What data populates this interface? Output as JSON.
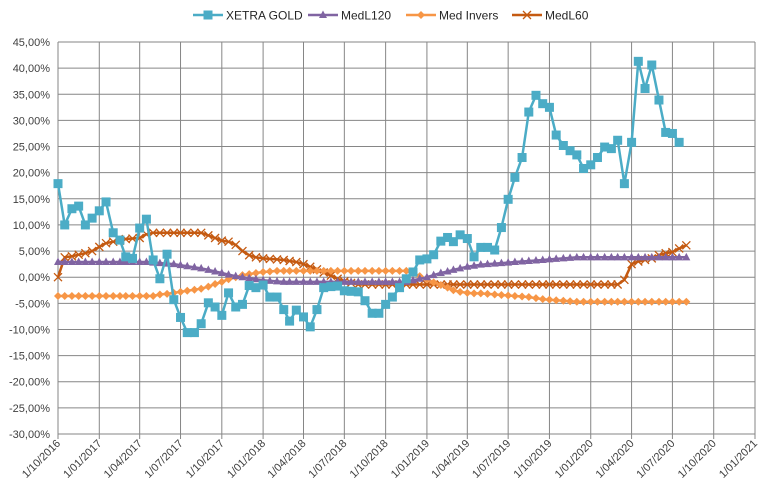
{
  "chart_data": {
    "type": "line",
    "title": "",
    "xlabel": "",
    "ylabel": "",
    "grid": true,
    "legend_placement": "top",
    "xlim": [
      "2016-10-01",
      "2021-01-01"
    ],
    "ylim": [
      -30,
      45
    ],
    "y_tick_step": 5,
    "x_ticks": [
      "1/10/2016",
      "1/01/2017",
      "1/04/2017",
      "1/07/2017",
      "1/10/2017",
      "1/01/2018",
      "1/04/2018",
      "1/07/2018",
      "1/10/2018",
      "1/01/2019",
      "1/04/2019",
      "1/07/2019",
      "1/10/2019",
      "1/01/2020",
      "1/04/2020",
      "1/07/2020",
      "1/10/2020",
      "1/01/2021"
    ],
    "y_ticks": [
      "45,00%",
      "40,00%",
      "35,00%",
      "30,00%",
      "25,00%",
      "20,00%",
      "15,00%",
      "10,00%",
      "5,00%",
      "0,00%",
      "-5,00%",
      "-10,00%",
      "-15,00%",
      "-20,00%",
      "-25,00%",
      "-30,00%"
    ],
    "x": [
      "2016-10-01",
      "2016-10-16",
      "2016-11-01",
      "2016-11-16",
      "2016-12-01",
      "2016-12-16",
      "2017-01-01",
      "2017-01-16",
      "2017-02-01",
      "2017-02-16",
      "2017-03-01",
      "2017-03-16",
      "2017-04-01",
      "2017-04-16",
      "2017-05-01",
      "2017-05-16",
      "2017-06-01",
      "2017-06-16",
      "2017-07-01",
      "2017-07-16",
      "2017-08-01",
      "2017-08-16",
      "2017-09-01",
      "2017-09-16",
      "2017-10-01",
      "2017-10-16",
      "2017-11-01",
      "2017-11-16",
      "2017-12-01",
      "2017-12-16",
      "2018-01-01",
      "2018-01-16",
      "2018-02-01",
      "2018-02-16",
      "2018-03-01",
      "2018-03-16",
      "2018-04-01",
      "2018-04-16",
      "2018-05-01",
      "2018-05-16",
      "2018-06-01",
      "2018-06-16",
      "2018-07-01",
      "2018-07-16",
      "2018-08-01",
      "2018-08-16",
      "2018-09-01",
      "2018-09-16",
      "2018-10-01",
      "2018-10-16",
      "2018-11-01",
      "2018-11-16",
      "2018-12-01",
      "2018-12-16",
      "2019-01-01",
      "2019-01-16",
      "2019-02-01",
      "2019-02-16",
      "2019-03-01",
      "2019-03-16",
      "2019-04-01",
      "2019-04-16",
      "2019-05-01",
      "2019-05-16",
      "2019-06-01",
      "2019-06-16",
      "2019-07-01",
      "2019-07-16",
      "2019-08-01",
      "2019-08-16",
      "2019-09-01",
      "2019-09-16",
      "2019-10-01",
      "2019-10-16",
      "2019-11-01",
      "2019-11-16",
      "2019-12-01",
      "2019-12-16",
      "2020-01-01",
      "2020-01-16",
      "2020-02-01",
      "2020-02-16",
      "2020-03-01",
      "2020-03-16",
      "2020-04-01",
      "2020-04-16",
      "2020-05-01",
      "2020-05-16",
      "2020-06-01",
      "2020-06-16",
      "2020-07-01",
      "2020-07-16",
      "2020-08-01"
    ],
    "series": [
      {
        "name": "XETRA GOLD",
        "color": "#4bacc6",
        "marker": "square",
        "values": [
          17.9,
          10.0,
          13.1,
          13.6,
          10.0,
          11.3,
          12.7,
          14.4,
          8.5,
          7.1,
          3.9,
          3.6,
          9.4,
          11.1,
          3.3,
          -0.3,
          4.4,
          -4.3,
          -7.7,
          -10.6,
          -10.6,
          -8.9,
          -4.9,
          -5.7,
          -7.3,
          -3.0,
          -5.7,
          -5.2,
          -1.6,
          -2.0,
          -1.5,
          -3.8,
          -3.8,
          -6.2,
          -8.4,
          -6.3,
          -7.6,
          -9.5,
          -6.2,
          -2.0,
          -1.8,
          -1.7,
          -2.6,
          -2.7,
          -2.8,
          -4.5,
          -6.9,
          -6.9,
          -5.2,
          -3.8,
          -2.0,
          -0.3,
          1.0,
          3.3,
          3.5,
          4.3,
          6.9,
          7.6,
          6.8,
          8.1,
          7.4,
          3.9,
          5.7,
          5.7,
          5.2,
          9.5,
          14.9,
          19.1,
          22.9,
          31.6,
          34.8,
          33.2,
          32.5,
          27.2,
          25.2,
          24.2,
          23.4,
          20.8,
          21.5,
          22.9,
          24.9,
          24.6,
          26.2,
          17.9,
          25.8,
          41.3,
          36.1,
          40.6,
          33.9,
          27.7,
          27.5,
          25.8,
          null
        ]
      },
      {
        "name": "MedL120",
        "color": "#8064a2",
        "marker": "triangle",
        "values": [
          2.9,
          2.9,
          2.9,
          2.9,
          2.9,
          2.9,
          2.9,
          2.9,
          2.9,
          2.9,
          2.9,
          2.9,
          2.9,
          2.9,
          2.8,
          2.7,
          2.6,
          2.5,
          2.3,
          2.1,
          1.9,
          1.7,
          1.4,
          1.1,
          0.8,
          0.5,
          0.2,
          0.0,
          -0.2,
          -0.4,
          -0.6,
          -0.7,
          -0.8,
          -0.9,
          -0.9,
          -0.9,
          -0.9,
          -0.9,
          -0.9,
          -0.9,
          -0.9,
          -0.9,
          -0.9,
          -0.9,
          -0.9,
          -0.9,
          -0.9,
          -0.9,
          -0.9,
          -0.9,
          -0.9,
          -0.9,
          -0.6,
          -0.3,
          0.0,
          0.4,
          0.8,
          1.1,
          1.4,
          1.7,
          2.0,
          2.2,
          2.4,
          2.5,
          2.6,
          2.7,
          2.8,
          2.9,
          3.0,
          3.1,
          3.2,
          3.3,
          3.4,
          3.5,
          3.6,
          3.7,
          3.8,
          3.8,
          3.8,
          3.8,
          3.8,
          3.8,
          3.8,
          3.8,
          3.8,
          3.8,
          3.8,
          3.8,
          3.8,
          3.8,
          3.8,
          3.8,
          3.8
        ]
      },
      {
        "name": "Med Invers",
        "color": "#f79646",
        "marker": "diamond",
        "values": [
          -3.6,
          -3.6,
          -3.6,
          -3.6,
          -3.6,
          -3.6,
          -3.6,
          -3.6,
          -3.6,
          -3.6,
          -3.6,
          -3.6,
          -3.6,
          -3.6,
          -3.6,
          -3.3,
          -3.2,
          -3.0,
          -2.8,
          -2.6,
          -2.4,
          -2.2,
          -1.8,
          -1.3,
          -0.9,
          -0.4,
          0.0,
          0.4,
          0.6,
          0.8,
          1.0,
          1.1,
          1.2,
          1.2,
          1.2,
          1.2,
          1.2,
          1.2,
          1.2,
          1.2,
          1.2,
          1.2,
          1.2,
          1.2,
          1.2,
          1.2,
          1.2,
          1.2,
          1.2,
          1.2,
          1.2,
          1.2,
          0.8,
          0.2,
          -0.4,
          -1.0,
          -1.5,
          -2.0,
          -2.5,
          -2.8,
          -3.0,
          -3.1,
          -3.1,
          -3.2,
          -3.3,
          -3.4,
          -3.5,
          -3.6,
          -3.7,
          -3.8,
          -4.0,
          -4.2,
          -4.3,
          -4.4,
          -4.5,
          -4.6,
          -4.7,
          -4.7,
          -4.7,
          -4.7,
          -4.7,
          -4.7,
          -4.7,
          -4.7,
          -4.7,
          -4.7,
          -4.7,
          -4.7,
          -4.7,
          -4.7,
          -4.7,
          -4.7,
          -4.7
        ]
      },
      {
        "name": "MedL60",
        "color": "#c55a11",
        "marker": "x",
        "values": [
          0.0,
          3.8,
          4.0,
          4.3,
          4.6,
          5.0,
          5.8,
          6.5,
          6.8,
          7.0,
          7.3,
          7.4,
          7.5,
          8.2,
          8.5,
          8.5,
          8.5,
          8.5,
          8.5,
          8.5,
          8.5,
          8.5,
          8.0,
          7.5,
          7.0,
          6.8,
          6.2,
          5.0,
          4.2,
          3.8,
          3.6,
          3.5,
          3.4,
          3.3,
          3.1,
          2.9,
          2.5,
          2.0,
          1.5,
          0.9,
          0.3,
          -0.3,
          -0.8,
          -1.1,
          -1.4,
          -1.4,
          -1.4,
          -1.4,
          -1.4,
          -1.4,
          -1.4,
          -1.4,
          -1.4,
          -1.4,
          -1.4,
          -1.4,
          -1.4,
          -1.4,
          -1.4,
          -1.4,
          -1.4,
          -1.4,
          -1.4,
          -1.4,
          -1.4,
          -1.4,
          -1.4,
          -1.4,
          -1.4,
          -1.4,
          -1.4,
          -1.4,
          -1.4,
          -1.4,
          -1.4,
          -1.4,
          -1.4,
          -1.4,
          -1.4,
          -1.4,
          -1.4,
          -1.4,
          -1.4,
          -0.5,
          2.5,
          3.0,
          3.3,
          3.6,
          4.2,
          4.6,
          4.8,
          5.5,
          6.1
        ]
      }
    ]
  }
}
